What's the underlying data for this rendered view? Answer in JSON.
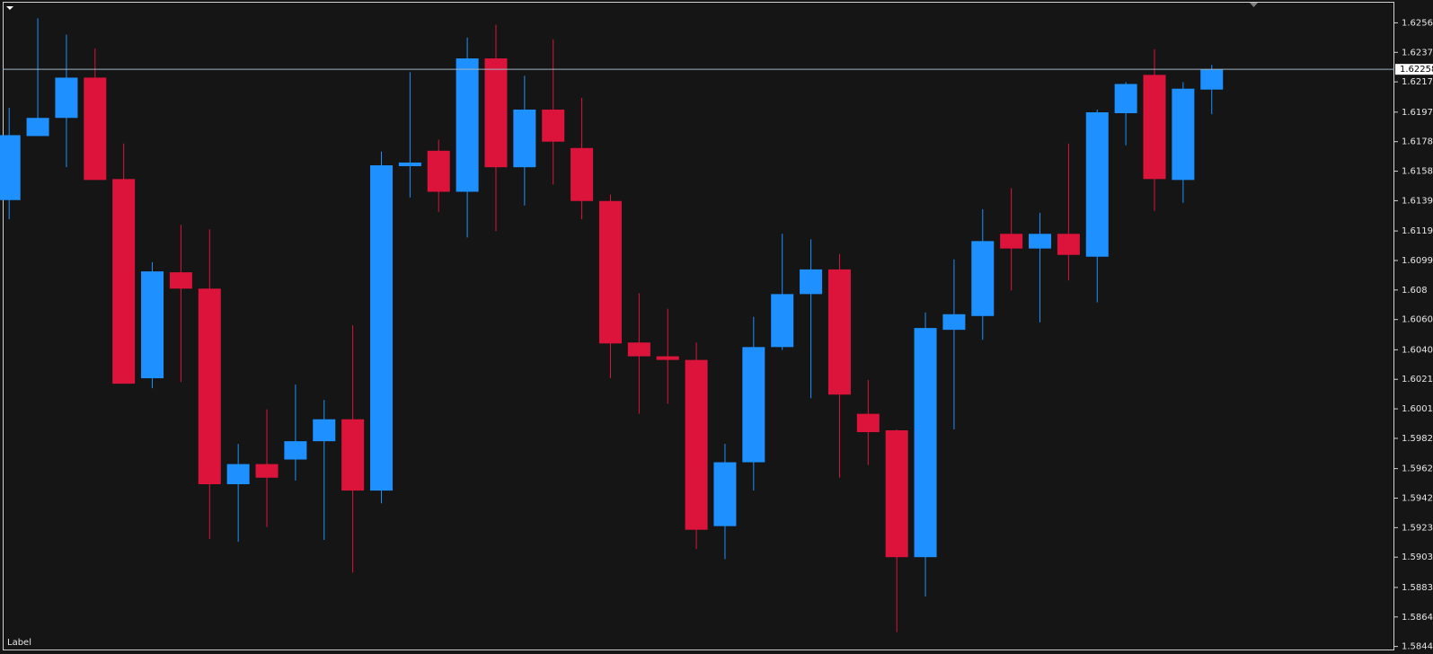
{
  "chart_data": {
    "type": "candlestick",
    "open": [
      1.61394,
      1.61817,
      1.61937,
      1.62203,
      1.61533,
      1.60217,
      1.60917,
      1.60809,
      1.59517,
      1.5965,
      1.5968,
      1.59801,
      1.59946,
      1.59475,
      1.61618,
      1.6172,
      1.61449,
      1.6233,
      1.61611,
      1.61992,
      1.61738,
      1.61388,
      1.60453,
      1.60362,
      1.60338,
      1.5924,
      1.59662,
      1.60423,
      1.60773,
      1.60936,
      1.59982,
      1.59873,
      1.59035,
      1.60537,
      1.60628,
      1.61171,
      1.61074,
      1.61171,
      1.6102,
      1.61968,
      1.62221,
      1.61527,
      1.62124
    ],
    "high": [
      1.62004,
      1.62595,
      1.62487,
      1.62396,
      1.61768,
      1.60984,
      1.61231,
      1.61201,
      1.59783,
      1.60012,
      1.60175,
      1.60073,
      1.60567,
      1.61714,
      1.62239,
      1.61793,
      1.62468,
      1.62553,
      1.62215,
      1.62456,
      1.6207,
      1.6143,
      1.60779,
      1.60676,
      1.60453,
      1.59783,
      1.60622,
      1.61171,
      1.61135,
      1.61038,
      1.60205,
      1.59879,
      1.60652,
      1.61002,
      1.61334,
      1.61473,
      1.6131,
      1.61768,
      1.61992,
      1.62173,
      1.6239,
      1.62173,
      1.62287
    ],
    "low": [
      1.61267,
      1.61817,
      1.61611,
      1.61527,
      1.60181,
      1.60151,
      1.60193,
      1.59155,
      1.59137,
      1.59234,
      1.59541,
      1.59149,
      1.58932,
      1.59391,
      1.61412,
      1.61316,
      1.61147,
      1.61189,
      1.61358,
      1.61497,
      1.61267,
      1.60217,
      1.59982,
      1.60048,
      1.59089,
      1.59022,
      1.59475,
      1.60404,
      1.60085,
      1.5956,
      1.59644,
      1.5854,
      1.58775,
      1.59879,
      1.60471,
      1.60797,
      1.60586,
      1.60863,
      1.60718,
      1.61756,
      1.61322,
      1.61376,
      1.61961
    ],
    "close": [
      1.61823,
      1.61937,
      1.62203,
      1.61527,
      1.60181,
      1.60923,
      1.60809,
      1.59517,
      1.5965,
      1.5956,
      1.59801,
      1.59946,
      1.59475,
      1.61624,
      1.61642,
      1.61449,
      1.6233,
      1.61611,
      1.61992,
      1.6178,
      1.61388,
      1.60447,
      1.60362,
      1.60338,
      1.59216,
      1.59662,
      1.60423,
      1.60773,
      1.60936,
      1.60109,
      1.59861,
      1.59035,
      1.60549,
      1.6064,
      1.61123,
      1.61074,
      1.61171,
      1.61032,
      1.61974,
      1.62161,
      1.61533,
      1.6213,
      1.62258
    ],
    "up_color": "#1e90ff",
    "down_color": "#dc143c",
    "ylim": [
      1.58419,
      1.62704
    ],
    "yticks": [
      1.62565,
      1.6237,
      1.62175,
      1.61975,
      1.6178,
      1.61585,
      1.6139,
      1.6119,
      1.60995,
      1.608,
      1.60605,
      1.60405,
      1.6021,
      1.60015,
      1.5982,
      1.5962,
      1.59425,
      1.5923,
      1.59035,
      1.58835,
      1.5864,
      1.58445
    ],
    "current_price": 1.62258,
    "annotation": "Label"
  }
}
